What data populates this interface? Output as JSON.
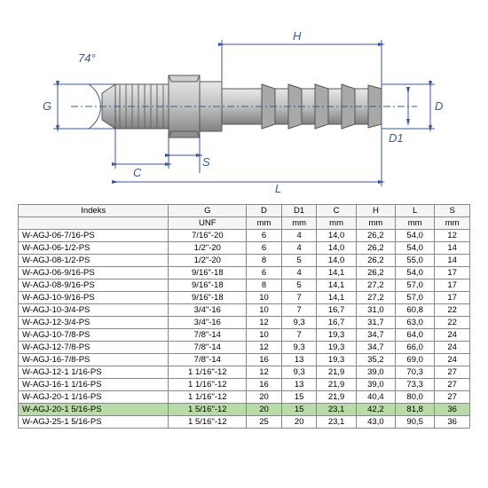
{
  "diagram": {
    "angle": "74°",
    "labels": {
      "G": "G",
      "D": "D",
      "D1": "D1",
      "C": "C",
      "H": "H",
      "L": "L",
      "S": "S"
    },
    "line_color": "#3b5998",
    "fitting_gradient": [
      "#e8e8e8",
      "#b0b0b0",
      "#808080"
    ]
  },
  "table": {
    "columns": [
      "Indeks",
      "G",
      "D",
      "D1",
      "C",
      "H",
      "L",
      "S"
    ],
    "units": [
      "",
      "UNF",
      "mm",
      "mm",
      "mm",
      "mm",
      "mm",
      "mm"
    ],
    "rows": [
      [
        "W-AGJ-06-7/16-PS",
        "7/16\"-20",
        "6",
        "4",
        "14,0",
        "26,2",
        "54,0",
        "12"
      ],
      [
        "W-AGJ-06-1/2-PS",
        "1/2\"-20",
        "6",
        "4",
        "14,0",
        "26,2",
        "54,0",
        "14"
      ],
      [
        "W-AGJ-08-1/2-PS",
        "1/2\"-20",
        "8",
        "5",
        "14,0",
        "26,2",
        "55,0",
        "14"
      ],
      [
        "W-AGJ-06-9/16-PS",
        "9/16\"-18",
        "6",
        "4",
        "14,1",
        "26,2",
        "54,0",
        "17"
      ],
      [
        "W-AGJ-08-9/16-PS",
        "9/16\"-18",
        "8",
        "5",
        "14,1",
        "27,2",
        "57,0",
        "17"
      ],
      [
        "W-AGJ-10-9/16-PS",
        "9/16\"-18",
        "10",
        "7",
        "14,1",
        "27,2",
        "57,0",
        "17"
      ],
      [
        "W-AGJ-10-3/4-PS",
        "3/4\"-16",
        "10",
        "7",
        "16,7",
        "31,0",
        "60,8",
        "22"
      ],
      [
        "W-AGJ-12-3/4-PS",
        "3/4\"-16",
        "12",
        "9,3",
        "16,7",
        "31,7",
        "63,0",
        "22"
      ],
      [
        "W-AGJ-10-7/8-PS",
        "7/8\"-14",
        "10",
        "7",
        "19,3",
        "34,7",
        "64,0",
        "24"
      ],
      [
        "W-AGJ-12-7/8-PS",
        "7/8\"-14",
        "12",
        "9,3",
        "19,3",
        "34,7",
        "66,0",
        "24"
      ],
      [
        "W-AGJ-16-7/8-PS",
        "7/8\"-14",
        "16",
        "13",
        "19,3",
        "35,2",
        "69,0",
        "24"
      ],
      [
        "W-AGJ-12-1 1/16-PS",
        "1 1/16\"-12",
        "12",
        "9,3",
        "21,9",
        "39,0",
        "70,3",
        "27"
      ],
      [
        "W-AGJ-16-1 1/16-PS",
        "1 1/16\"-12",
        "16",
        "13",
        "21,9",
        "39,0",
        "73,3",
        "27"
      ],
      [
        "W-AGJ-20-1 1/16-PS",
        "1 1/16\"-12",
        "20",
        "15",
        "21,9",
        "40,4",
        "80,0",
        "27"
      ],
      [
        "W-AGJ-20-1 5/16-PS",
        "1 5/16\"-12",
        "20",
        "15",
        "23,1",
        "42,2",
        "81,8",
        "36"
      ],
      [
        "W-AGJ-25-1 5/16-PS",
        "1 5/16\"-12",
        "25",
        "20",
        "23,1",
        "43,0",
        "90,5",
        "36"
      ]
    ],
    "highlight_row": 14,
    "header_bg": "#f5f5f5",
    "border_color": "#888888",
    "highlight_bg": "#b8dba8",
    "fontsize": 9.5
  }
}
